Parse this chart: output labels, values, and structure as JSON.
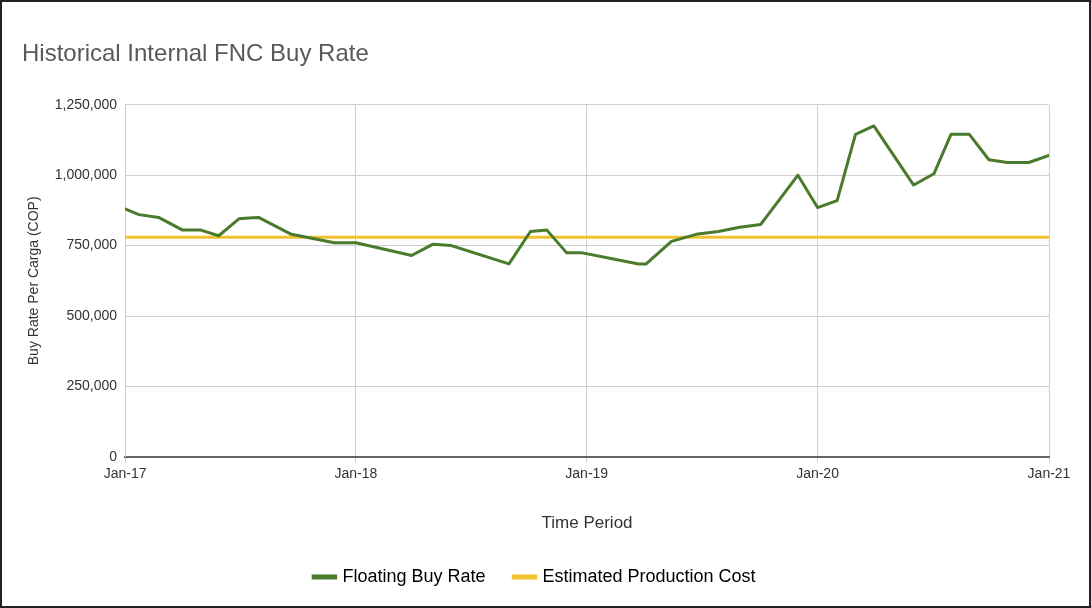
{
  "chart_data": {
    "type": "line",
    "title": "Historical Internal FNC Buy Rate",
    "xlabel": "Time Period",
    "ylabel": "Buy Rate Per Carga (COP)",
    "xlim": [
      "2017-01-01",
      "2021-01-01"
    ],
    "xticks": [
      {
        "value": "2017-01-01",
        "label": "Jan-17"
      },
      {
        "value": "2018-01-01",
        "label": "Jan-18"
      },
      {
        "value": "2019-01-01",
        "label": "Jan-19"
      },
      {
        "value": "2020-01-01",
        "label": "Jan-20"
      },
      {
        "value": "2021-01-01",
        "label": "Jan-21"
      }
    ],
    "ylim": [
      0,
      1250000
    ],
    "yticks": [
      0,
      {
        "value": 250000,
        "label": "250,000"
      },
      {
        "value": 500000,
        "label": "500,000"
      },
      {
        "value": 750000,
        "label": "750,000"
      },
      {
        "value": 1000000,
        "label": "1,000,000"
      },
      {
        "value": 1250000,
        "label": "1,250,000"
      }
    ],
    "grid": true,
    "legend": "bottom",
    "marker": "none",
    "line_style": "solid",
    "series": [
      {
        "name": "Floating Buy Rate",
        "color": "#4a7a2c",
        "x": [
          "2017-01-01",
          "2017-01-23",
          "2017-02-23",
          "2017-04-02",
          "2017-05-01",
          "2017-05-29",
          "2017-06-30",
          "2017-07-31",
          "2017-09-21",
          "2017-10-25",
          "2017-11-28",
          "2018-01-01",
          "2018-03-30",
          "2018-05-03",
          "2018-06-01",
          "2018-08-31",
          "2018-10-04",
          "2018-10-30",
          "2018-11-30",
          "2018-12-23",
          "2019-03-24",
          "2019-04-05",
          "2019-05-15",
          "2019-06-23",
          "2019-07-28",
          "2019-08-31",
          "2019-10-03",
          "2019-12-01",
          "2020-01-01",
          "2020-02-01",
          "2020-03-01",
          "2020-03-30",
          "2020-06-01",
          "2020-07-03",
          "2020-07-30",
          "2020-08-28",
          "2020-09-28",
          "2020-10-27",
          "2020-11-30",
          "2021-01-01"
        ],
        "values": [
          880000,
          860000,
          850000,
          805000,
          805000,
          785000,
          845000,
          850000,
          790000,
          775000,
          760000,
          760000,
          715000,
          755000,
          750000,
          685000,
          800000,
          805000,
          725000,
          725000,
          685000,
          685000,
          765000,
          790000,
          800000,
          815000,
          825000,
          1000000,
          885000,
          910000,
          1145000,
          1175000,
          965000,
          1005000,
          1145000,
          1145000,
          1055000,
          1045000,
          1045000,
          1070000
        ]
      },
      {
        "name": "Estimated Production Cost",
        "color": "#f2c12e",
        "x": [
          "2017-01-01",
          "2021-01-01"
        ],
        "values": [
          780000,
          780000
        ]
      }
    ]
  }
}
